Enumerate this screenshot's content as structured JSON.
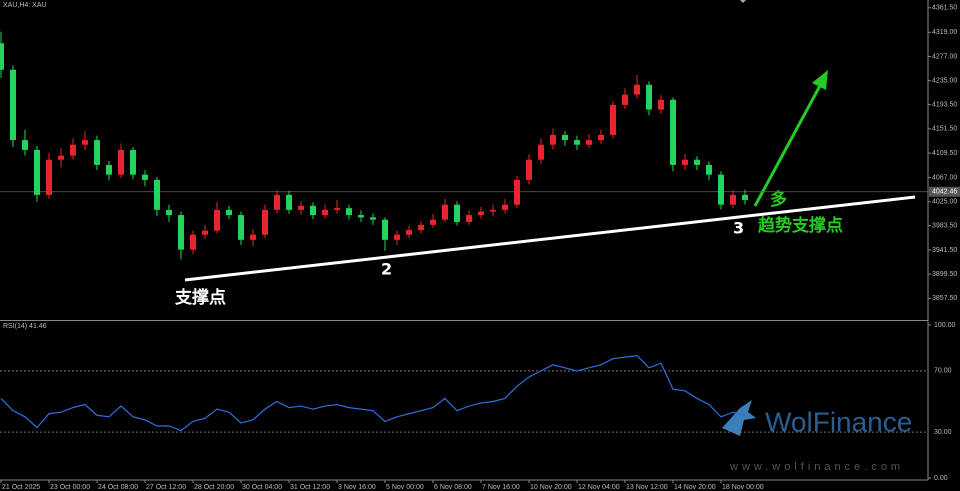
{
  "chart_data": [
    {
      "type": "candlestick",
      "title": "XAU,H4: XAU",
      "up_color": "#e8242d",
      "down_color": "#22d35c",
      "ylim": [
        3820,
        4375
      ],
      "yticks": [
        {
          "value": 4361.5,
          "label": "4361.50"
        },
        {
          "value": 4319,
          "label": "4319.00"
        },
        {
          "value": 4277,
          "label": "4277.00"
        },
        {
          "value": 4235,
          "label": "4235.00"
        },
        {
          "value": 4193.5,
          "label": "4193.50"
        },
        {
          "value": 4151.5,
          "label": "4151.50"
        },
        {
          "value": 4109.5,
          "label": "4109.50"
        },
        {
          "value": 4067,
          "label": "4067.00"
        },
        {
          "value": 4025,
          "label": "4025.00"
        },
        {
          "value": 3983.5,
          "label": "3983.50"
        },
        {
          "value": 3941.5,
          "label": "3941.50"
        },
        {
          "value": 3899.5,
          "label": "3899.50"
        },
        {
          "value": 3857.5,
          "label": "3857.50"
        }
      ],
      "current_price": 4042.46,
      "categories": [
        "21 Oct 2025",
        null,
        null,
        null,
        "23 Oct 00:00",
        null,
        null,
        null,
        "24 Oct 08:00",
        null,
        null,
        null,
        "27 Oct 12:00",
        null,
        null,
        null,
        "28 Oct 20:00",
        null,
        null,
        null,
        "30 Oct 04:00",
        null,
        null,
        null,
        "31 Oct 12:00",
        null,
        null,
        null,
        "3 Nov 16:00",
        null,
        null,
        null,
        "5 Nov 00:00",
        null,
        null,
        null,
        "6 Nov 08:00",
        null,
        null,
        null,
        "7 Nov 16:00",
        null,
        null,
        null,
        "10 Nov 20:00",
        null,
        null,
        null,
        "12 Nov 04:00",
        null,
        null,
        null,
        "13 Nov 12:00",
        null,
        null,
        null,
        "14 Nov 20:00",
        null,
        null,
        null,
        "18 Nov 00:00",
        null,
        null
      ],
      "values": [
        [
          4300,
          4320,
          4240,
          4254
        ],
        [
          4254,
          4262,
          4120,
          4132
        ],
        [
          4132,
          4150,
          4105,
          4115
        ],
        [
          4115,
          4122,
          4025,
          4037
        ],
        [
          4037,
          4110,
          4030,
          4098
        ],
        [
          4098,
          4118,
          4085,
          4105
        ],
        [
          4105,
          4135,
          4098,
          4124
        ],
        [
          4124,
          4148,
          4115,
          4132
        ],
        [
          4132,
          4140,
          4080,
          4089
        ],
        [
          4089,
          4096,
          4062,
          4072
        ],
        [
          4072,
          4126,
          4066,
          4115
        ],
        [
          4115,
          4120,
          4064,
          4072
        ],
        [
          4072,
          4080,
          4052,
          4063
        ],
        [
          4063,
          4068,
          4000,
          4011
        ],
        [
          4011,
          4020,
          3990,
          4002
        ],
        [
          4002,
          4008,
          3925,
          3942
        ],
        [
          3942,
          3975,
          3935,
          3968
        ],
        [
          3968,
          3985,
          3960,
          3975
        ],
        [
          3975,
          4025,
          3970,
          4011
        ],
        [
          4011,
          4018,
          3995,
          4002
        ],
        [
          4002,
          4008,
          3950,
          3959
        ],
        [
          3959,
          3978,
          3948,
          3968
        ],
        [
          3968,
          4020,
          3962,
          4011
        ],
        [
          4011,
          4045,
          4005,
          4037
        ],
        [
          4037,
          4044,
          4004,
          4011
        ],
        [
          4011,
          4026,
          4003,
          4018
        ],
        [
          4018,
          4024,
          3995,
          4002
        ],
        [
          4002,
          4020,
          3996,
          4011
        ],
        [
          4011,
          4028,
          4005,
          4014
        ],
        [
          4014,
          4020,
          3994,
          4002
        ],
        [
          4002,
          4010,
          3990,
          3998
        ],
        [
          3998,
          4005,
          3985,
          3994
        ],
        [
          3994,
          3998,
          3940,
          3959
        ],
        [
          3959,
          3975,
          3950,
          3968
        ],
        [
          3968,
          3984,
          3962,
          3976
        ],
        [
          3976,
          3992,
          3970,
          3985
        ],
        [
          3985,
          4004,
          3980,
          3994
        ],
        [
          3994,
          4030,
          3990,
          4020
        ],
        [
          4020,
          4026,
          3984,
          3990
        ],
        [
          3990,
          4010,
          3985,
          4002
        ],
        [
          4002,
          4016,
          3996,
          4008
        ],
        [
          4008,
          4020,
          4000,
          4011
        ],
        [
          4011,
          4030,
          4005,
          4020
        ],
        [
          4020,
          4070,
          4015,
          4063
        ],
        [
          4063,
          4108,
          4055,
          4098
        ],
        [
          4098,
          4135,
          4090,
          4124
        ],
        [
          4124,
          4152,
          4116,
          4141
        ],
        [
          4141,
          4148,
          4122,
          4132
        ],
        [
          4132,
          4140,
          4115,
          4124
        ],
        [
          4124,
          4142,
          4118,
          4132
        ],
        [
          4132,
          4150,
          4125,
          4141
        ],
        [
          4141,
          4200,
          4135,
          4193
        ],
        [
          4193,
          4222,
          4186,
          4211
        ],
        [
          4211,
          4245,
          4204,
          4228
        ],
        [
          4228,
          4234,
          4175,
          4185
        ],
        [
          4185,
          4210,
          4178,
          4202
        ],
        [
          4202,
          4206,
          4078,
          4089
        ],
        [
          4089,
          4108,
          4080,
          4098
        ],
        [
          4098,
          4104,
          4080,
          4089
        ],
        [
          4089,
          4095,
          4062,
          4072
        ],
        [
          4072,
          4078,
          4012,
          4020
        ],
        [
          4020,
          4045,
          4014,
          4037
        ],
        [
          4037,
          4046,
          4020,
          4028
        ]
      ],
      "annotations": [
        "支撑点",
        "2",
        "3",
        "多",
        "趋势支撑点"
      ],
      "watermark": [
        "WolFinance",
        "www.wolfinance.com"
      ]
    },
    {
      "type": "line",
      "title": "RSI(14) 41.46",
      "color": "#2f6fe0",
      "ylim": [
        0,
        100
      ],
      "yticks": [
        {
          "value": 100,
          "label": "100.00"
        },
        {
          "value": 70,
          "label": "70.00"
        },
        {
          "value": 30,
          "label": "30.00"
        },
        {
          "value": 0,
          "label": "0.00"
        }
      ],
      "values": [
        52,
        44,
        40,
        33,
        42,
        43,
        46,
        48,
        41,
        40,
        47,
        40,
        38,
        34,
        34,
        31,
        37,
        39,
        45,
        43,
        36,
        38,
        45,
        50,
        46,
        47,
        45,
        47,
        48,
        46,
        45,
        44,
        37,
        40,
        42,
        44,
        46,
        52,
        44,
        47,
        49,
        50,
        52,
        60,
        66,
        70,
        74,
        72,
        70,
        72,
        74,
        78,
        79,
        80,
        72,
        75,
        58,
        57,
        52,
        48,
        40,
        43,
        41
      ]
    }
  ]
}
